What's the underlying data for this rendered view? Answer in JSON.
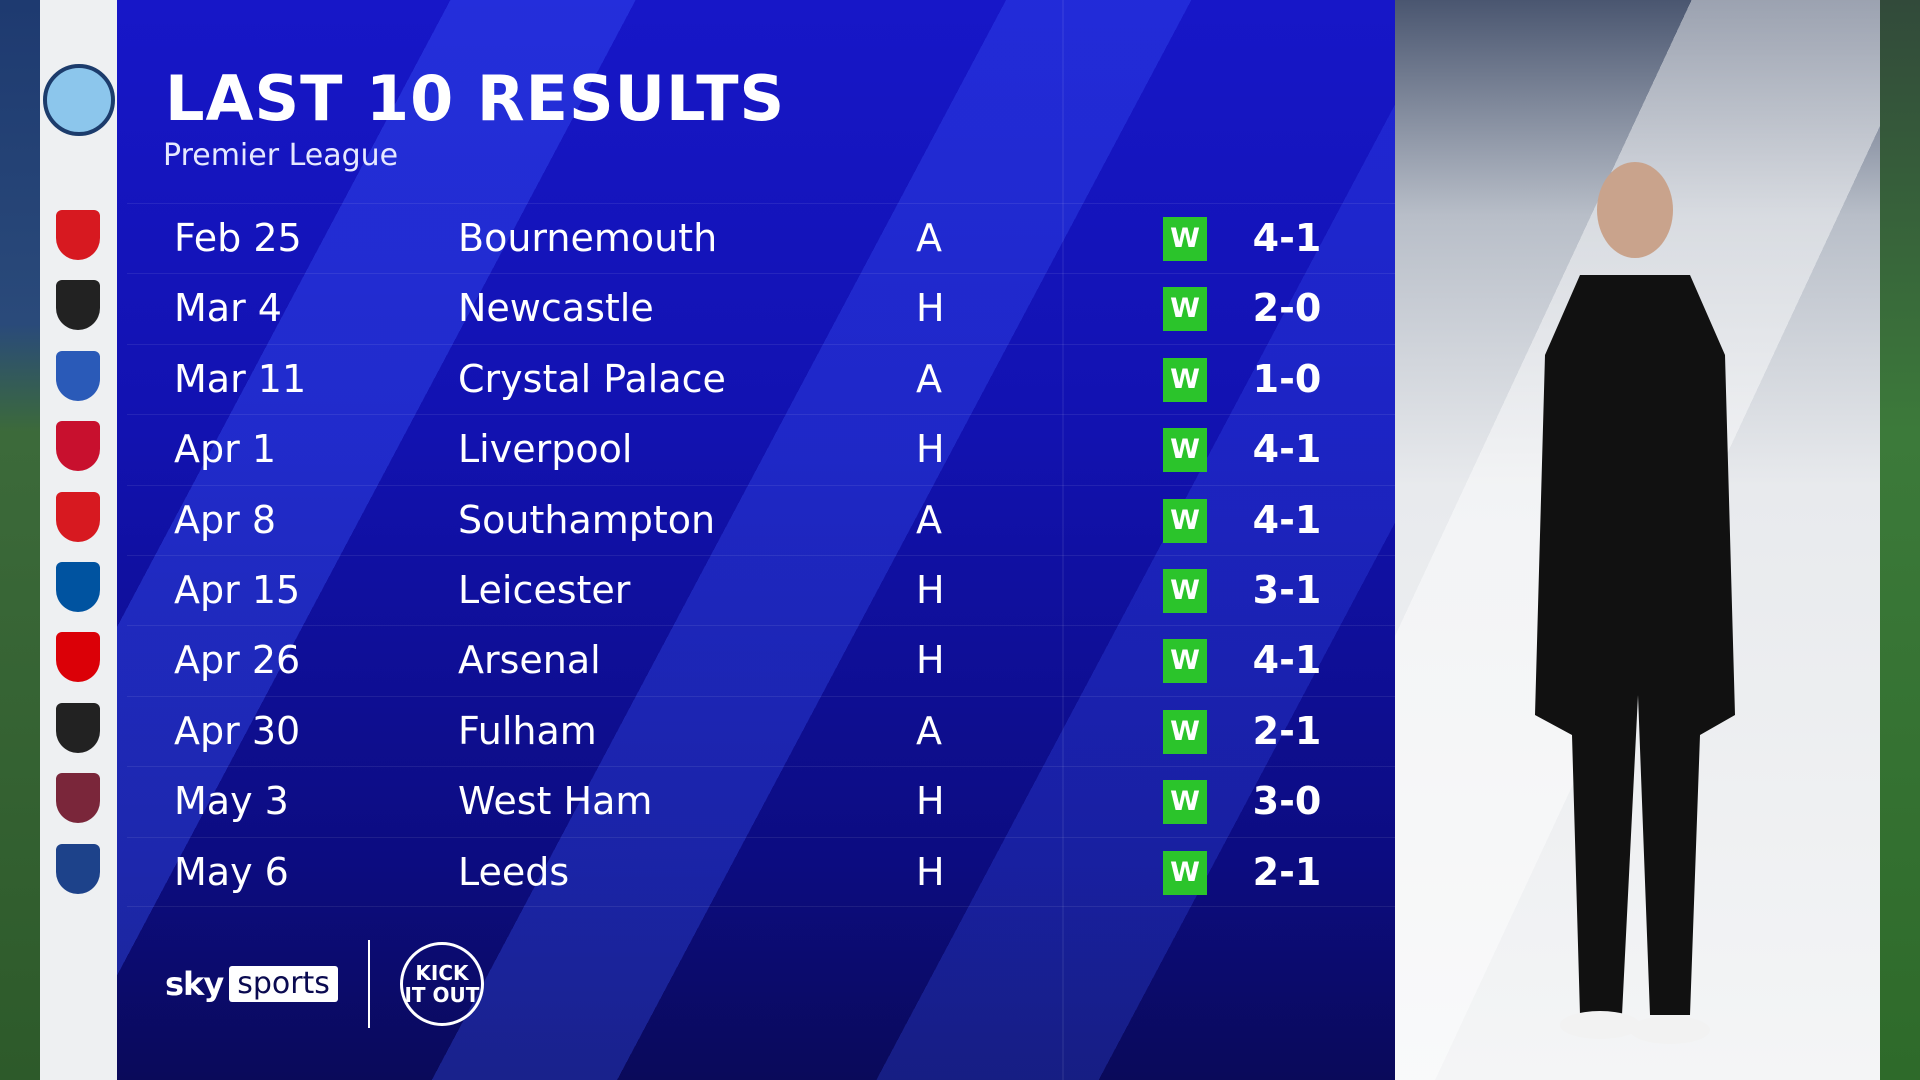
{
  "header": {
    "title": "LAST 10 RESULTS",
    "subtitle": "Premier League"
  },
  "team_crest": "manchester-city-crest",
  "results": [
    {
      "date": "Feb 25",
      "opponent": "Bournemouth",
      "venue": "A",
      "result": "W",
      "score": "4-1",
      "crest_color": "#d71920"
    },
    {
      "date": "Mar 4",
      "opponent": "Newcastle",
      "venue": "H",
      "result": "W",
      "score": "2-0",
      "crest_color": "#222222"
    },
    {
      "date": "Mar 11",
      "opponent": "Crystal Palace",
      "venue": "A",
      "result": "W",
      "score": "1-0",
      "crest_color": "#2a5ab8"
    },
    {
      "date": "Apr 1",
      "opponent": "Liverpool",
      "venue": "H",
      "result": "W",
      "score": "4-1",
      "crest_color": "#c8102e"
    },
    {
      "date": "Apr 8",
      "opponent": "Southampton",
      "venue": "A",
      "result": "W",
      "score": "4-1",
      "crest_color": "#d71920"
    },
    {
      "date": "Apr 15",
      "opponent": "Leicester",
      "venue": "H",
      "result": "W",
      "score": "3-1",
      "crest_color": "#0053a0"
    },
    {
      "date": "Apr 26",
      "opponent": "Arsenal",
      "venue": "H",
      "result": "W",
      "score": "4-1",
      "crest_color": "#db0007"
    },
    {
      "date": "Apr 30",
      "opponent": "Fulham",
      "venue": "A",
      "result": "W",
      "score": "2-1",
      "crest_color": "#222222"
    },
    {
      "date": "May 3",
      "opponent": "West Ham",
      "venue": "H",
      "result": "W",
      "score": "3-0",
      "crest_color": "#7a263a"
    },
    {
      "date": "May 6",
      "opponent": "Leeds",
      "venue": "H",
      "result": "W",
      "score": "2-1",
      "crest_color": "#1d428a"
    }
  ],
  "colors": {
    "win": "#2bc42b",
    "panel": "#1212b0"
  },
  "footer": {
    "sky": "sky",
    "sports": "sports",
    "kick_it_out": "KICK IT OUT"
  }
}
